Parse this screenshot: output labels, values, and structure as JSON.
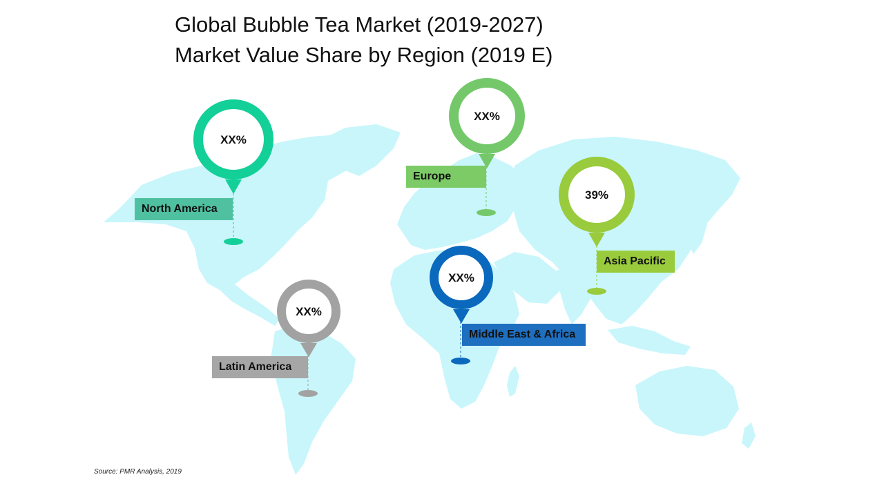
{
  "title": {
    "line1": "Global Bubble Tea Market (2019-2027)",
    "line2": "Market Value Share by Region (2019 E)"
  },
  "map_data": {
    "type": "world-map-region-pins",
    "regions": [
      {
        "name": "North America",
        "value": "XX%",
        "color": "#13cf98",
        "label_color": "#4fc1a1"
      },
      {
        "name": "Europe",
        "value": "XX%",
        "color": "#74c86a",
        "label_color": "#7ccb67"
      },
      {
        "name": "Asia Pacific",
        "value": "39%",
        "color": "#99cb3c",
        "label_color": "#99cb3c"
      },
      {
        "name": "Middle East & Africa",
        "value": "XX%",
        "color": "#0a68bd",
        "label_color": "#1f6fc0"
      },
      {
        "name": "Latin America",
        "value": "XX%",
        "color": "#a2a2a2",
        "label_color": "#a6a6a6"
      }
    ],
    "land_color": "#c8f6fb"
  },
  "source": "Source: PMR Analysis, 2019"
}
